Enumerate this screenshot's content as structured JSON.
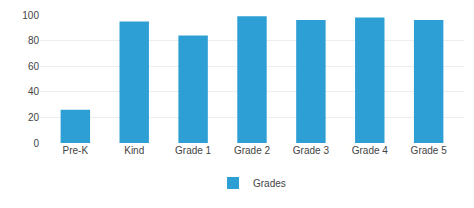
{
  "chart_data": {
    "type": "bar",
    "categories": [
      "Pre-K",
      "Kind",
      "Grade 1",
      "Grade 2",
      "Grade 3",
      "Grade 4",
      "Grade 5"
    ],
    "series": [
      {
        "name": "Grades",
        "color": "#2e9fd4",
        "values": [
          26,
          95,
          84,
          99,
          96,
          98,
          96
        ]
      }
    ],
    "ylim": [
      0,
      100
    ],
    "yticks": [
      0,
      20,
      40,
      60,
      80,
      100
    ],
    "grid": true,
    "legend": "bottom"
  }
}
